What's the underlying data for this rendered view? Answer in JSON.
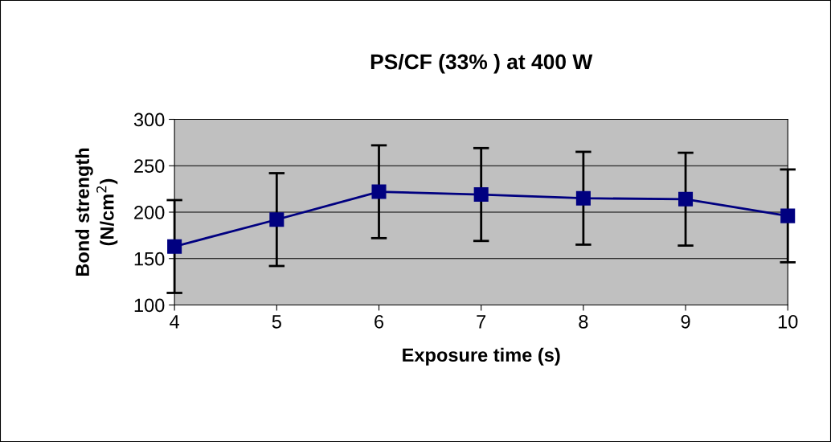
{
  "chart_data": {
    "type": "line",
    "title": "PS/CF (33% ) at 400 W",
    "xlabel": "Exposure time (s)",
    "ylabel": "Bond strength\n(N/cm$^{2}$)",
    "x": [
      4,
      5,
      6,
      7,
      8,
      9,
      10
    ],
    "series": [
      {
        "color": "#000080",
        "values": [
          163,
          192,
          222,
          219,
          215,
          214,
          196
        ],
        "errors": [
          50,
          50,
          50,
          50,
          50,
          50,
          50
        ]
      }
    ],
    "xlim": [
      4,
      10
    ],
    "xticks": [
      4,
      5,
      6,
      7,
      8,
      9,
      10
    ],
    "ylim": [
      100,
      300
    ],
    "yticks": [
      100,
      150,
      200,
      250,
      300
    ],
    "grid": "y",
    "marker": "square",
    "line_style": "solid",
    "legend": false
  }
}
